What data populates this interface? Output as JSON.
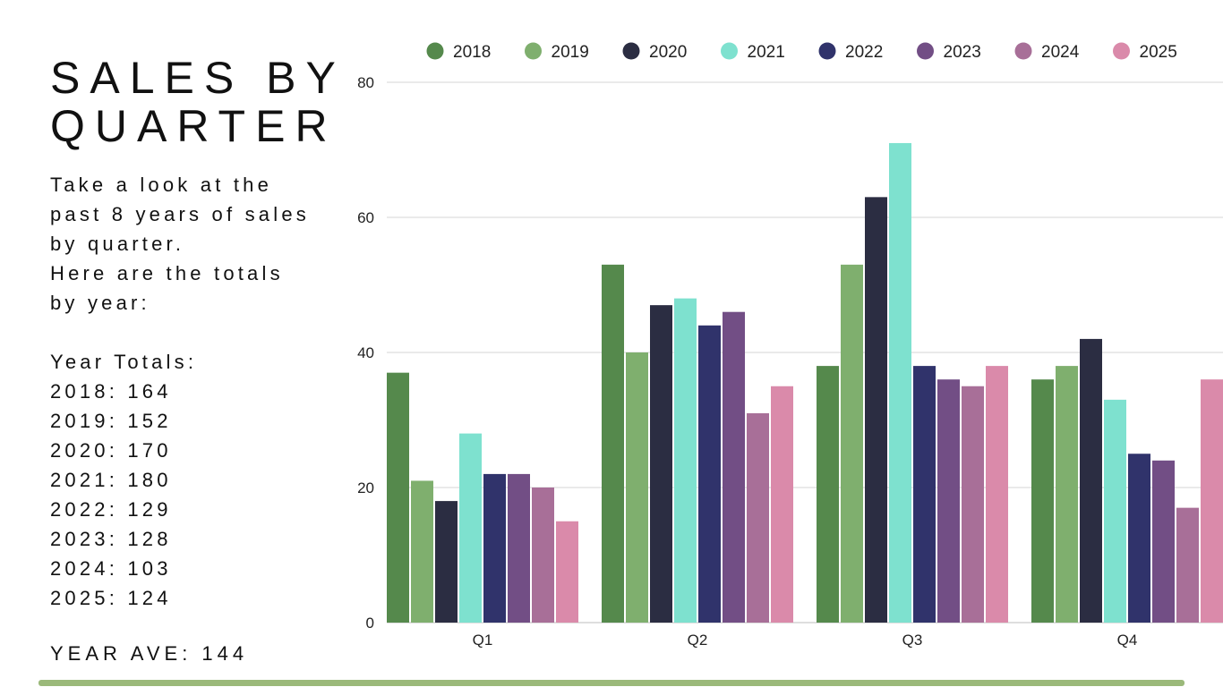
{
  "heading": {
    "title": "SALES BY\nQUARTER",
    "intro_lines": [
      "Take a look at the",
      "past 8 years of sales",
      "by quarter.",
      "Here are the totals",
      "by year:"
    ]
  },
  "totals": {
    "label": "Year Totals:",
    "lines": [
      "2018: 164",
      "2019: 152",
      "2020: 170",
      "2021: 180",
      "2022: 129",
      "2023: 128",
      "2024: 103",
      "2025: 124"
    ]
  },
  "average": "YEAR AVE: 144",
  "chart_data": {
    "type": "bar",
    "categories": [
      "Q1",
      "Q2",
      "Q3",
      "Q4"
    ],
    "ylim": [
      0,
      80
    ],
    "yticks": [
      0,
      20,
      40,
      60,
      80
    ],
    "grid": true,
    "legend_position": "top",
    "series": [
      {
        "name": "2018",
        "color": "#55894c",
        "values": [
          37,
          53,
          38,
          36
        ]
      },
      {
        "name": "2019",
        "color": "#7faf6e",
        "values": [
          21,
          40,
          53,
          38
        ]
      },
      {
        "name": "2020",
        "color": "#2b2d42",
        "values": [
          18,
          47,
          63,
          42
        ]
      },
      {
        "name": "2021",
        "color": "#7ee1cf",
        "values": [
          28,
          48,
          71,
          33
        ]
      },
      {
        "name": "2022",
        "color": "#30336b",
        "values": [
          22,
          44,
          38,
          25
        ]
      },
      {
        "name": "2023",
        "color": "#724e85",
        "values": [
          22,
          46,
          36,
          24
        ]
      },
      {
        "name": "2024",
        "color": "#a86f98",
        "values": [
          20,
          31,
          35,
          17
        ]
      },
      {
        "name": "2025",
        "color": "#da8aaa",
        "values": [
          15,
          35,
          38,
          36
        ]
      }
    ]
  }
}
